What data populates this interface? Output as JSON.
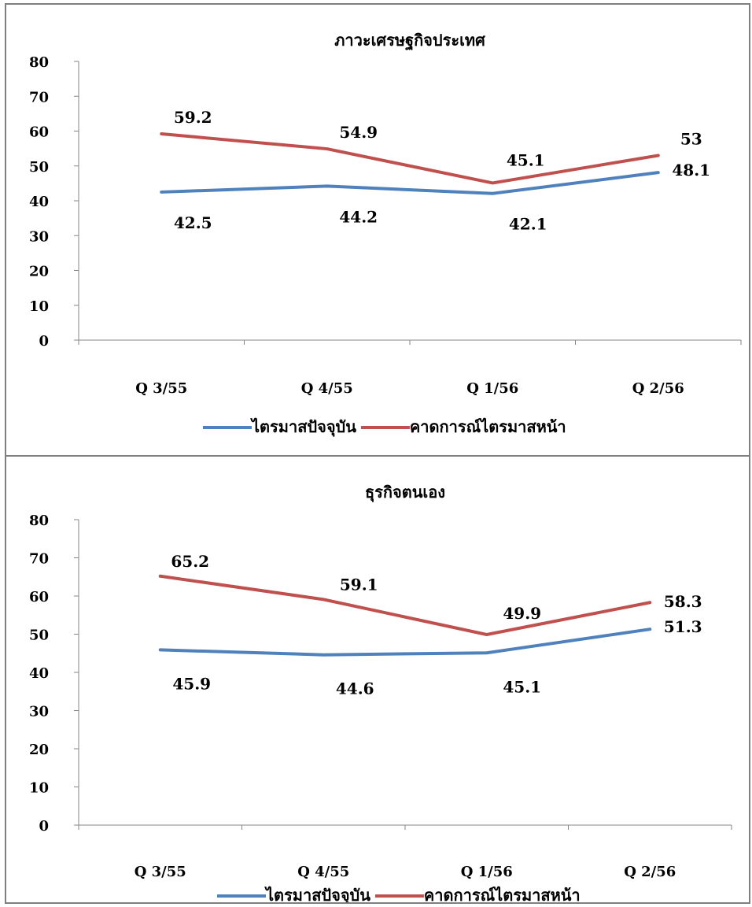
{
  "chart_data": [
    {
      "type": "line",
      "title": "ภาวะเศรษฐกิจประเทศ",
      "categories": [
        "Q 3/55",
        "Q 4/55",
        "Q 1/56",
        "Q 2/56"
      ],
      "ylim": [
        0,
        80
      ],
      "yticks": [
        "0",
        "10",
        "20",
        "30",
        "40",
        "50",
        "60",
        "70",
        "80"
      ],
      "grid": false,
      "legend_position": "bottom",
      "series": [
        {
          "name": "ไตรมาสปัจจุบัน",
          "color": "#4f81bd",
          "values": [
            42.5,
            44.2,
            42.1,
            48.1
          ],
          "labels": [
            "42.5",
            "44.2",
            "42.1",
            "48.1"
          ]
        },
        {
          "name": "คาดการณ์ไตรมาสหน้า",
          "color": "#c0504d",
          "values": [
            59.2,
            54.9,
            45.1,
            53
          ],
          "labels": [
            "59.2",
            "54.9",
            "45.1",
            "53"
          ]
        }
      ]
    },
    {
      "type": "line",
      "title": "ธุรกิจตนเอง",
      "categories": [
        "Q 3/55",
        "Q 4/55",
        "Q 1/56",
        "Q 2/56"
      ],
      "ylim": [
        0,
        80
      ],
      "yticks": [
        "0",
        "10",
        "20",
        "30",
        "40",
        "50",
        "60",
        "70",
        "80"
      ],
      "grid": false,
      "legend_position": "bottom",
      "series": [
        {
          "name": "ไตรมาสปัจจุบัน",
          "color": "#4f81bd",
          "values": [
            45.9,
            44.6,
            45.1,
            51.3
          ],
          "labels": [
            "45.9",
            "44.6",
            "45.1",
            "51.3"
          ]
        },
        {
          "name": "คาดการณ์ไตรมาสหน้า",
          "color": "#c0504d",
          "values": [
            65.2,
            59.1,
            49.9,
            58.3
          ],
          "labels": [
            "65.2",
            "59.1",
            "49.9",
            "58.3"
          ]
        }
      ]
    }
  ]
}
